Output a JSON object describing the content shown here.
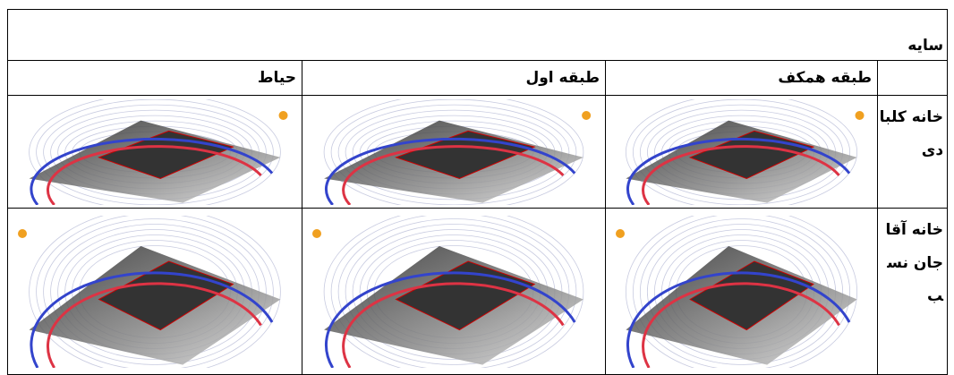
{
  "table": {
    "title": "سایه",
    "columns": [
      "طبقه همکف",
      "طبقه اول",
      "حیاط"
    ],
    "rows": [
      {
        "label": "خانه کلبادی"
      },
      {
        "label": "خانه آقاجان نسب"
      }
    ]
  }
}
